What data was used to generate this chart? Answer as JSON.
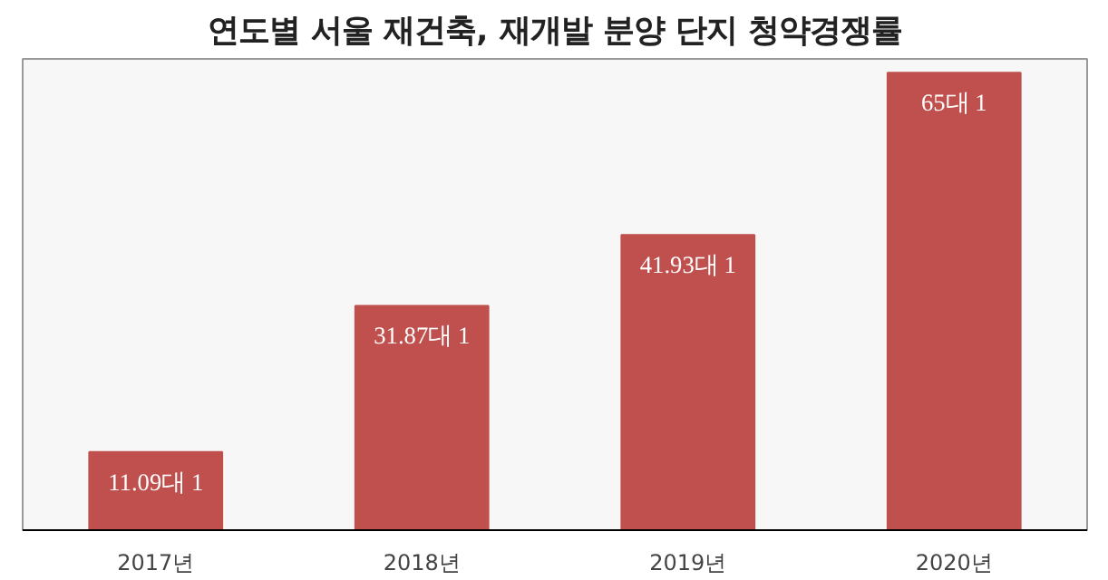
{
  "chart_data": {
    "type": "bar",
    "title": "연도별 서울 재건축, 재개발 분양 단지 청약경쟁률",
    "categories": [
      "2017년",
      "2018년",
      "2019년",
      "2020년"
    ],
    "values": [
      11.09,
      31.87,
      41.93,
      65
    ],
    "value_labels": [
      "11.09대 1",
      "31.87대 1",
      "41.93대 1",
      "65대 1"
    ],
    "color": "#c0504d",
    "grid": false
  }
}
